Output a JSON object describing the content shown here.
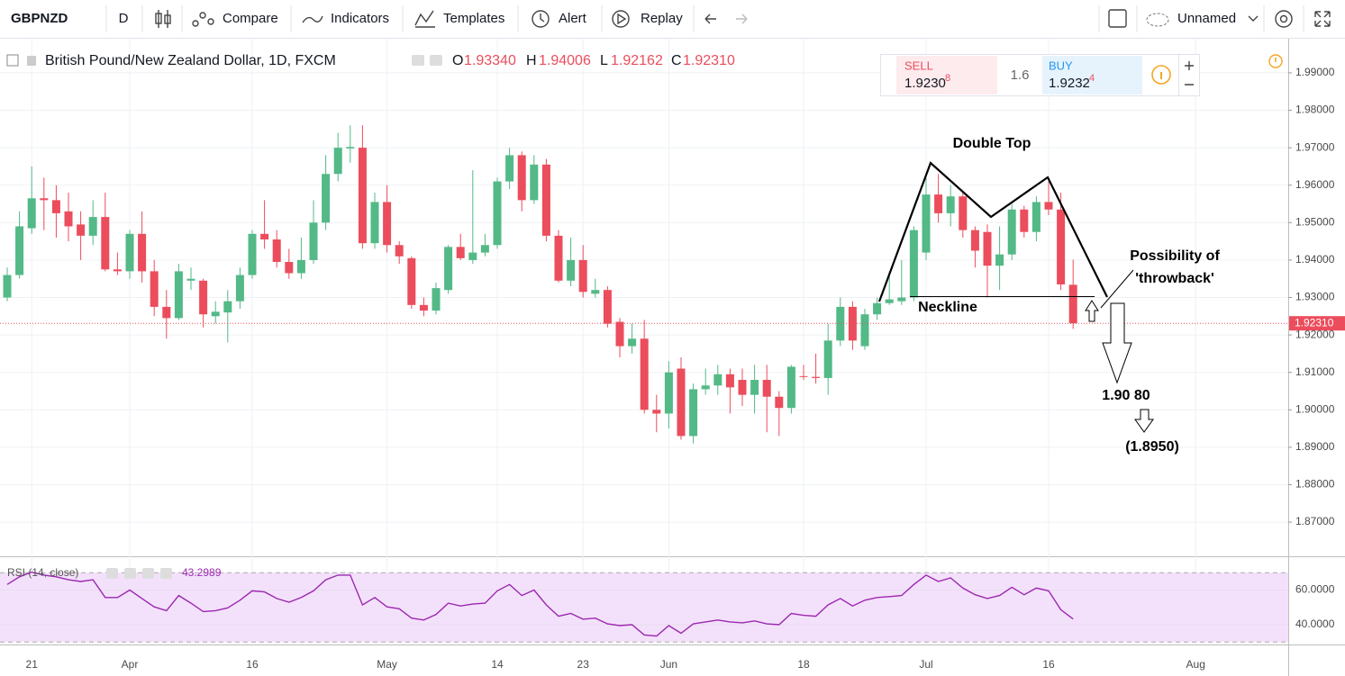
{
  "toolbar": {
    "symbol": "GBPNZD",
    "interval": "D",
    "buttons": [
      "Compare",
      "Indicators",
      "Templates",
      "Alert",
      "Replay"
    ],
    "layout_name": "Unnamed"
  },
  "trade": {
    "sell_label": "SELL",
    "sell_price": "1.9230",
    "sell_pip": "8",
    "spread": "1.6",
    "buy_label": "BUY",
    "buy_price": "1.9232",
    "buy_pip": "4"
  },
  "chart_data": [
    {
      "type": "candlestick",
      "title": "British Pound/New Zealand Dollar, 1D, FXCM",
      "legend": [
        {
          "key": "O",
          "value": "1.93340"
        },
        {
          "key": "H",
          "value": "1.94006"
        },
        {
          "key": "L",
          "value": "1.92162"
        },
        {
          "key": "C",
          "value": "1.92310"
        }
      ],
      "last_price_label": "1.92310",
      "categories": [
        null,
        null,
        "21",
        null,
        null,
        null,
        null,
        null,
        null,
        null,
        "Apr",
        null,
        null,
        null,
        null,
        null,
        null,
        null,
        null,
        null,
        "16",
        null,
        null,
        null,
        null,
        null,
        null,
        null,
        null,
        null,
        null,
        "May",
        null,
        null,
        null,
        null,
        null,
        null,
        null,
        null,
        "14",
        null,
        null,
        null,
        null,
        null,
        null,
        "23",
        null,
        null,
        null,
        null,
        null,
        null,
        "Jun",
        null,
        null,
        null,
        null,
        null,
        null,
        null,
        null,
        null,
        null,
        "18",
        null,
        null,
        null,
        null,
        null,
        null,
        null,
        null,
        null,
        "Jul",
        null,
        null,
        null,
        null,
        null,
        null,
        null,
        null,
        null,
        "16",
        null,
        null,
        null,
        null,
        null,
        null,
        null,
        null,
        null,
        null,
        null,
        "Aug"
      ],
      "open": [
        1.93,
        1.936,
        1.9485,
        1.9565,
        1.956,
        1.953,
        1.9495,
        1.9465,
        1.9515,
        1.9375,
        1.937,
        1.947,
        1.937,
        1.9275,
        1.9245,
        1.9345,
        1.9345,
        1.925,
        1.926,
        1.929,
        1.936,
        1.947,
        1.9455,
        1.9395,
        1.9365,
        1.94,
        1.95,
        1.963,
        1.9698,
        1.97,
        1.9445,
        1.9555,
        1.944,
        1.9405,
        1.928,
        1.9265,
        1.932,
        1.9435,
        1.94,
        1.942,
        1.944,
        1.961,
        1.968,
        1.956,
        1.9655,
        1.9465,
        1.9345,
        1.94,
        1.931,
        1.932,
        1.9235,
        1.917,
        1.919,
        1.9,
        1.899,
        1.911,
        1.893,
        1.9055,
        1.9065,
        1.9095,
        1.908,
        1.904,
        1.908,
        1.9035,
        1.9005,
        1.909,
        1.9088,
        1.9085,
        1.9185,
        1.9275,
        1.917,
        1.9255,
        1.9285,
        1.929,
        1.93,
        1.942,
        1.9575,
        1.9525,
        1.957,
        1.948,
        1.9475,
        1.9385,
        1.9415,
        1.9535,
        1.9475,
        1.9555,
        1.9535,
        1.9334,
        null,
        null,
        null,
        null,
        null,
        null,
        null,
        null,
        null,
        null
      ],
      "high": [
        1.938,
        1.953,
        1.965,
        1.962,
        1.96,
        1.958,
        1.953,
        1.956,
        1.958,
        1.942,
        1.948,
        1.953,
        1.94,
        1.932,
        1.939,
        1.938,
        1.935,
        1.929,
        1.932,
        1.938,
        1.948,
        1.956,
        1.948,
        1.943,
        1.946,
        1.956,
        1.968,
        1.974,
        1.976,
        1.976,
        1.958,
        1.96,
        1.945,
        1.941,
        1.93,
        1.934,
        1.944,
        1.947,
        1.964,
        1.947,
        1.962,
        1.97,
        1.969,
        1.968,
        1.967,
        1.948,
        1.946,
        1.944,
        1.935,
        1.933,
        1.9245,
        1.923,
        1.924,
        1.904,
        1.913,
        1.914,
        1.907,
        1.911,
        1.912,
        1.911,
        1.911,
        1.912,
        1.912,
        1.905,
        1.912,
        1.912,
        1.915,
        1.923,
        1.93,
        1.929,
        1.927,
        1.93,
        1.937,
        1.94,
        1.949,
        1.962,
        1.963,
        1.96,
        1.958,
        1.949,
        1.9495,
        1.949,
        1.955,
        1.9545,
        1.957,
        1.961,
        1.958,
        1.9401,
        null,
        null,
        null,
        null,
        null,
        null,
        null,
        null,
        null,
        null
      ],
      "low": [
        1.929,
        1.935,
        1.947,
        1.948,
        1.946,
        1.945,
        1.94,
        1.944,
        1.937,
        1.936,
        1.935,
        1.934,
        1.925,
        1.919,
        1.924,
        1.932,
        1.922,
        1.923,
        1.918,
        1.927,
        1.935,
        1.943,
        1.938,
        1.935,
        1.935,
        1.939,
        1.948,
        1.961,
        1.966,
        1.943,
        1.943,
        1.942,
        1.939,
        1.927,
        1.925,
        1.9255,
        1.931,
        1.94,
        1.939,
        1.941,
        1.943,
        1.959,
        1.953,
        1.955,
        1.945,
        1.934,
        1.933,
        1.93,
        1.93,
        1.922,
        1.914,
        1.915,
        1.899,
        1.894,
        1.895,
        1.892,
        1.891,
        1.904,
        1.904,
        1.899,
        1.901,
        1.899,
        1.894,
        1.893,
        1.899,
        1.908,
        1.907,
        1.904,
        1.917,
        1.916,
        1.916,
        1.924,
        1.928,
        1.928,
        1.929,
        1.94,
        1.95,
        1.949,
        1.946,
        1.938,
        1.93,
        1.932,
        1.94,
        1.946,
        1.945,
        1.952,
        1.932,
        1.9216,
        null,
        null,
        null,
        null,
        null,
        null,
        null,
        null,
        null,
        null
      ],
      "close": [
        1.936,
        1.949,
        1.9565,
        1.956,
        1.9525,
        1.949,
        1.9465,
        1.9515,
        1.9375,
        1.937,
        1.947,
        1.937,
        1.9275,
        1.9245,
        1.937,
        1.935,
        1.9255,
        1.9262,
        1.929,
        1.936,
        1.947,
        1.9455,
        1.9395,
        1.9365,
        1.94,
        1.95,
        1.963,
        1.97,
        1.9702,
        1.9445,
        1.9555,
        1.944,
        1.941,
        1.928,
        1.9265,
        1.9325,
        1.9435,
        1.9405,
        1.942,
        1.944,
        1.961,
        1.968,
        1.956,
        1.9655,
        1.9465,
        1.9345,
        1.94,
        1.9315,
        1.932,
        1.923,
        1.917,
        1.919,
        1.9,
        1.899,
        1.91,
        1.893,
        1.9055,
        1.9065,
        1.9095,
        1.906,
        1.904,
        1.908,
        1.9035,
        1.9005,
        1.9115,
        1.9088,
        1.9085,
        1.9185,
        1.9275,
        1.9185,
        1.9255,
        1.9285,
        1.9295,
        1.93,
        1.948,
        1.9575,
        1.9525,
        1.957,
        1.948,
        1.9425,
        1.9385,
        1.9415,
        1.9535,
        1.9475,
        1.9555,
        1.9535,
        1.9335,
        1.9231,
        null,
        null,
        null,
        null,
        null,
        null,
        null,
        null,
        null,
        null
      ],
      "up_color": "#53b987",
      "down_color": "#eb4d5c",
      "ylim": [
        1.86088,
        1.99912
      ],
      "yticks": [
        {
          "value": 1.87,
          "label": "1.87000"
        },
        {
          "value": 1.88,
          "label": "1.88000"
        },
        {
          "value": 1.89,
          "label": "1.89000"
        },
        {
          "value": 1.9,
          "label": "1.90000"
        },
        {
          "value": 1.91,
          "label": "1.91000"
        },
        {
          "value": 1.92,
          "label": "1.92000"
        },
        {
          "value": 1.93,
          "label": "1.93000"
        },
        {
          "value": 1.94,
          "label": "1.94000"
        },
        {
          "value": 1.95,
          "label": "1.95000"
        },
        {
          "value": 1.96,
          "label": "1.96000"
        },
        {
          "value": 1.97,
          "label": "1.97000"
        },
        {
          "value": 1.98,
          "label": "1.98000"
        },
        {
          "value": 1.99,
          "label": "1.99000"
        }
      ],
      "grid": true,
      "annotations": [
        "Double Top",
        "Neckline",
        "Possibility of",
        "'throwback'",
        "1.90 80",
        "(1.8950)"
      ]
    },
    {
      "type": "line",
      "title": "RSI (14, close)",
      "color": "#9c27b0",
      "values": [
        63.2,
        67.6,
        70.3,
        68.6,
        67.6,
        65.9,
        64.9,
        65.9,
        55.7,
        55.7,
        60.0,
        55.1,
        50.3,
        48.1,
        56.8,
        52.4,
        47.6,
        48.1,
        49.7,
        54.1,
        59.5,
        58.9,
        55.1,
        53.0,
        55.7,
        59.5,
        65.9,
        68.6,
        68.6,
        51.4,
        55.7,
        50.3,
        49.2,
        43.8,
        42.7,
        45.9,
        52.4,
        50.8,
        51.9,
        52.4,
        59.5,
        63.2,
        56.8,
        60.0,
        51.4,
        44.9,
        46.5,
        43.2,
        43.8,
        40.5,
        39.5,
        40.0,
        34.1,
        33.5,
        39.5,
        35.1,
        40.5,
        41.6,
        42.7,
        41.6,
        41.1,
        42.2,
        40.5,
        40.0,
        46.5,
        45.4,
        44.9,
        51.4,
        55.1,
        50.8,
        54.1,
        55.7,
        56.2,
        56.8,
        63.2,
        68.6,
        64.9,
        67.0,
        61.1,
        57.3,
        55.1,
        56.8,
        61.6,
        57.3,
        61.1,
        59.5,
        48.6,
        43.2989,
        null,
        null,
        null,
        null,
        null,
        null,
        null,
        null,
        null,
        null
      ],
      "ylim": [
        28.6,
        78.4
      ],
      "yticks": [
        {
          "value": 60,
          "label": "60.0000"
        },
        {
          "value": 40,
          "label": "40.0000"
        }
      ],
      "band": [
        30,
        70
      ],
      "band_color": "#f3e1fb"
    }
  ]
}
